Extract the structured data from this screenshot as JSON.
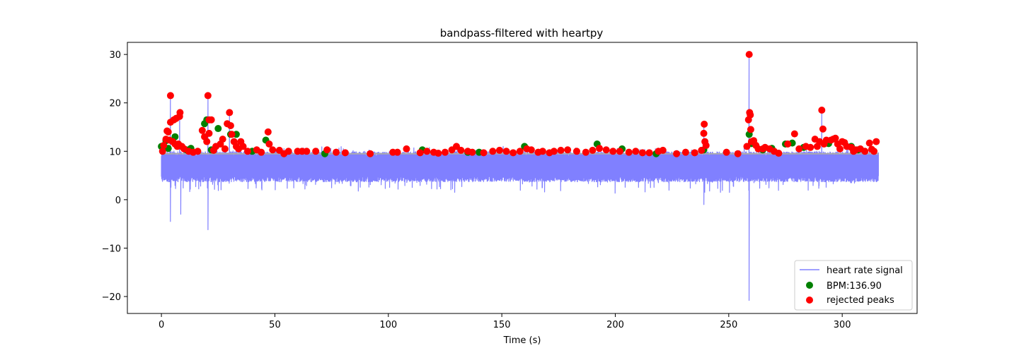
{
  "chart_data": {
    "type": "line",
    "title": "bandpass-filtered with heartpy",
    "xlabel": "Time (s)",
    "ylabel": "",
    "xlim": [
      -15,
      333
    ],
    "ylim": [
      -23.5,
      32.5
    ],
    "xticks": [
      0,
      50,
      100,
      150,
      200,
      250,
      300
    ],
    "yticks": [
      -20,
      -10,
      0,
      10,
      20,
      30
    ],
    "xtick_labels": [
      "0",
      "50",
      "100",
      "150",
      "200",
      "250",
      "300"
    ],
    "ytick_labels": [
      "−20",
      "−10",
      "0",
      "10",
      "20",
      "30"
    ],
    "grid": false,
    "legend_position": "lower-right",
    "signal": {
      "name": "heart rate signal",
      "color": "#8080ff",
      "x_range": [
        0,
        316
      ],
      "baseline_band": [
        4,
        9
      ],
      "excursions": [
        {
          "x": 4,
          "y": 21.5
        },
        {
          "x": 4,
          "y": -4.5
        },
        {
          "x": 8,
          "y": 18
        },
        {
          "x": 8.5,
          "y": -3
        },
        {
          "x": 20.5,
          "y": 21.5
        },
        {
          "x": 20.5,
          "y": -6.2
        },
        {
          "x": 30,
          "y": 18
        },
        {
          "x": 239,
          "y": 15.5
        },
        {
          "x": 239,
          "y": -1
        },
        {
          "x": 259,
          "y": 30
        },
        {
          "x": 259,
          "y": -20.8
        },
        {
          "x": 291,
          "y": 18.5
        }
      ]
    },
    "mean_line": {
      "y": 9.5,
      "x_range": [
        0,
        316
      ],
      "color": "#aaaaaa"
    },
    "series": [
      {
        "name": "BPM:136.90",
        "color": "#008000",
        "points": [
          [
            0,
            11
          ],
          [
            2,
            12.2
          ],
          [
            3,
            10.6
          ],
          [
            6,
            13
          ],
          [
            11,
            10.3
          ],
          [
            13,
            10.6
          ],
          [
            19,
            15.7
          ],
          [
            20,
            16.5
          ],
          [
            22,
            10.3
          ],
          [
            25,
            14.7
          ],
          [
            30.5,
            13.5
          ],
          [
            33,
            13.5
          ],
          [
            40,
            10
          ],
          [
            46,
            12.3
          ],
          [
            72,
            9.5
          ],
          [
            115,
            10.3
          ],
          [
            135,
            9.8
          ],
          [
            140,
            9.8
          ],
          [
            160,
            11
          ],
          [
            192,
            11.5
          ],
          [
            203,
            10.5
          ],
          [
            218,
            9.5
          ],
          [
            239,
            10.3
          ],
          [
            259,
            13.5
          ],
          [
            260,
            11.6
          ],
          [
            265,
            10.3
          ],
          [
            269,
            10.6
          ],
          [
            275,
            11.5
          ],
          [
            278,
            11.7
          ],
          [
            283,
            10.8
          ],
          [
            294,
            11.6
          ],
          [
            304,
            11
          ],
          [
            307,
            10.3
          ]
        ]
      },
      {
        "name": "rejected peaks",
        "color": "#ff0000",
        "points": [
          [
            0.5,
            10
          ],
          [
            1,
            11.2
          ],
          [
            2,
            12.5
          ],
          [
            2.5,
            14.2
          ],
          [
            3,
            14
          ],
          [
            3.5,
            12.3
          ],
          [
            4,
            21.5
          ],
          [
            4,
            16
          ],
          [
            5,
            12
          ],
          [
            5.5,
            16.5
          ],
          [
            6,
            11.5
          ],
          [
            6.5,
            16.8
          ],
          [
            7,
            11
          ],
          [
            7.5,
            11.5
          ],
          [
            8,
            17.2
          ],
          [
            8.2,
            18
          ],
          [
            9,
            11
          ],
          [
            10,
            10.5
          ],
          [
            12,
            10
          ],
          [
            14,
            9.8
          ],
          [
            16,
            10
          ],
          [
            18,
            14.3
          ],
          [
            19,
            13
          ],
          [
            20,
            12
          ],
          [
            20.5,
            21.5
          ],
          [
            21,
            16.5
          ],
          [
            21,
            13.7
          ],
          [
            22,
            16.5
          ],
          [
            23,
            10.2
          ],
          [
            24,
            11
          ],
          [
            26,
            11.5
          ],
          [
            27,
            12.5
          ],
          [
            28,
            10.5
          ],
          [
            29,
            15.7
          ],
          [
            30,
            18
          ],
          [
            30.5,
            15.3
          ],
          [
            31,
            13.5
          ],
          [
            32,
            12
          ],
          [
            33,
            11
          ],
          [
            34,
            10.5
          ],
          [
            35,
            12
          ],
          [
            36,
            11
          ],
          [
            38,
            10
          ],
          [
            42,
            10.3
          ],
          [
            44,
            9.8
          ],
          [
            47,
            14
          ],
          [
            47.5,
            11.5
          ],
          [
            49,
            10.3
          ],
          [
            52,
            10.2
          ],
          [
            54,
            9.5
          ],
          [
            56,
            10
          ],
          [
            60,
            10
          ],
          [
            62,
            10
          ],
          [
            64,
            10
          ],
          [
            68,
            10
          ],
          [
            73,
            10.3
          ],
          [
            77,
            9.8
          ],
          [
            81,
            9.7
          ],
          [
            92,
            9.5
          ],
          [
            102,
            9.8
          ],
          [
            104,
            9.8
          ],
          [
            108,
            10.5
          ],
          [
            114,
            9.7
          ],
          [
            117,
            10
          ],
          [
            120,
            9.8
          ],
          [
            122,
            9.6
          ],
          [
            125,
            9.8
          ],
          [
            128,
            10.3
          ],
          [
            130,
            11
          ],
          [
            132,
            10.2
          ],
          [
            135,
            10
          ],
          [
            137,
            9.8
          ],
          [
            142,
            9.7
          ],
          [
            146,
            10
          ],
          [
            149,
            10.2
          ],
          [
            152,
            10
          ],
          [
            155,
            9.7
          ],
          [
            158,
            10
          ],
          [
            161,
            10.5
          ],
          [
            163,
            10.3
          ],
          [
            166,
            9.8
          ],
          [
            168,
            10
          ],
          [
            171,
            9.7
          ],
          [
            173,
            10
          ],
          [
            176,
            10.2
          ],
          [
            179,
            10.3
          ],
          [
            183,
            10
          ],
          [
            187,
            9.8
          ],
          [
            190,
            10.2
          ],
          [
            193,
            10.6
          ],
          [
            196,
            10.3
          ],
          [
            199,
            10
          ],
          [
            202,
            10
          ],
          [
            206,
            9.8
          ],
          [
            209,
            10
          ],
          [
            212,
            9.7
          ],
          [
            215,
            9.7
          ],
          [
            219,
            10
          ],
          [
            221,
            10.2
          ],
          [
            227,
            9.5
          ],
          [
            231,
            9.8
          ],
          [
            235,
            9.7
          ],
          [
            238,
            10.2
          ],
          [
            239,
            13.7
          ],
          [
            239.2,
            15.6
          ],
          [
            239.5,
            12
          ],
          [
            240,
            11.2
          ],
          [
            249,
            9.8
          ],
          [
            254,
            9.5
          ],
          [
            258,
            11
          ],
          [
            258.7,
            16.5
          ],
          [
            259,
            30
          ],
          [
            259.2,
            18
          ],
          [
            259.5,
            17.5
          ],
          [
            259.7,
            14.5
          ],
          [
            260,
            12
          ],
          [
            261,
            12.2
          ],
          [
            262,
            11.2
          ],
          [
            263,
            10.5
          ],
          [
            265,
            10.5
          ],
          [
            266,
            10.8
          ],
          [
            268,
            10.5
          ],
          [
            270,
            10
          ],
          [
            272,
            9.6
          ],
          [
            276,
            11.5
          ],
          [
            279,
            13.6
          ],
          [
            281,
            10.5
          ],
          [
            284,
            11
          ],
          [
            286,
            10.8
          ],
          [
            288,
            12.5
          ],
          [
            289,
            11
          ],
          [
            290,
            12
          ],
          [
            291,
            18.5
          ],
          [
            291.5,
            14.6
          ],
          [
            292,
            11.5
          ],
          [
            293,
            12.3
          ],
          [
            295,
            12.3
          ],
          [
            296,
            12.5
          ],
          [
            297,
            12.7
          ],
          [
            298,
            11.5
          ],
          [
            299,
            10.5
          ],
          [
            300,
            12
          ],
          [
            301,
            11.8
          ],
          [
            302,
            11
          ],
          [
            304,
            10.8
          ],
          [
            305,
            10
          ],
          [
            306,
            10.3
          ],
          [
            308,
            10.5
          ],
          [
            310,
            10
          ],
          [
            312,
            11.7
          ],
          [
            313,
            10.4
          ],
          [
            314,
            10
          ],
          [
            315,
            12
          ]
        ]
      }
    ]
  }
}
